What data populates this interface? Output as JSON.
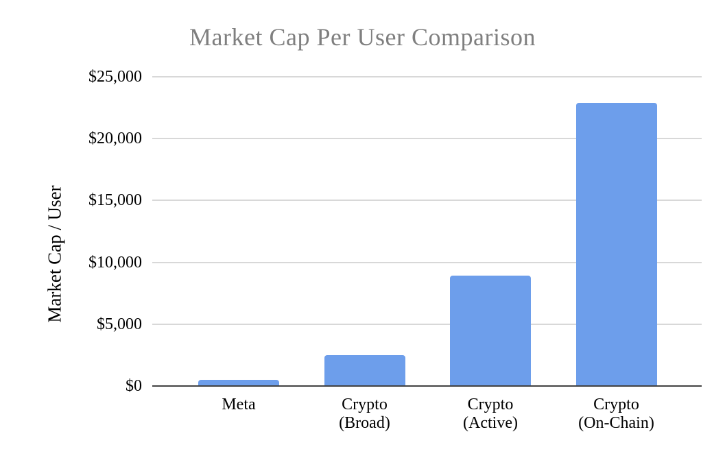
{
  "chart_data": {
    "type": "bar",
    "title": "Market Cap Per User Comparison",
    "xlabel": "",
    "ylabel": "Market Cap / User",
    "categories": [
      "Meta",
      "Crypto (Broad)",
      "Crypto (Active)",
      "Crypto (On-Chain)"
    ],
    "category_lines": [
      [
        "Meta"
      ],
      [
        "Crypto",
        "(Broad)"
      ],
      [
        "Crypto",
        "(Active)"
      ],
      [
        "Crypto",
        "(On-Chain)"
      ]
    ],
    "values": [
      500,
      2500,
      8900,
      22900
    ],
    "ylim": [
      0,
      25000
    ],
    "yticks": [
      0,
      5000,
      10000,
      15000,
      20000,
      25000
    ],
    "ytick_labels": [
      "$0",
      "$5,000",
      "$10,000",
      "$15,000",
      "$20,000",
      "$25,000"
    ],
    "grid": true,
    "legend_position": "none",
    "colors": {
      "bar": "#6d9eeb",
      "title_text": "#7f7f7f",
      "axis_text": "#000000",
      "gridline": "#d8d8d8",
      "baseline": "#424242",
      "background": "#ffffff"
    }
  }
}
